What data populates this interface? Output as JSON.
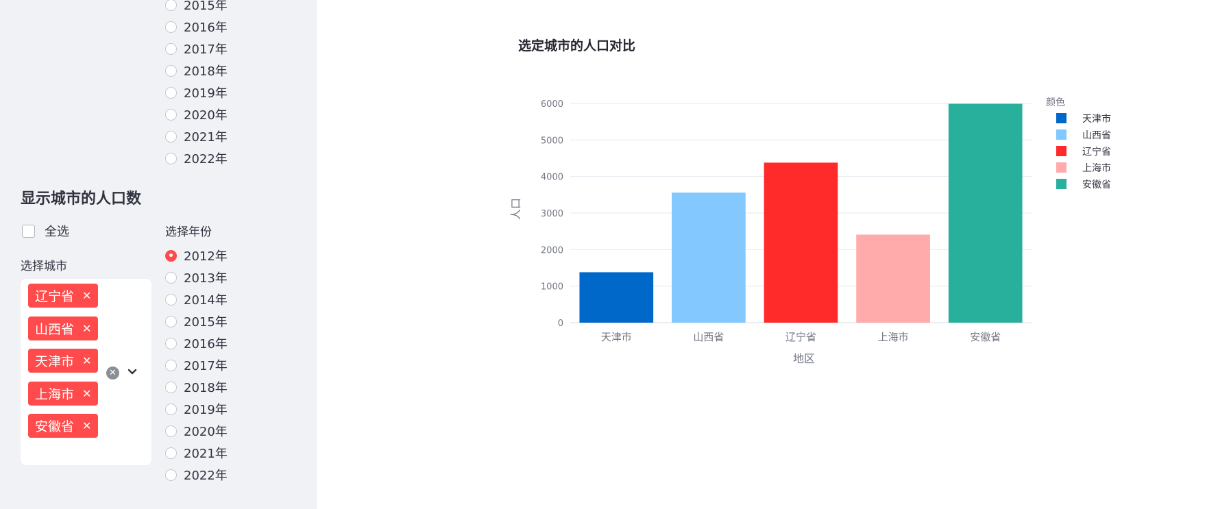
{
  "sidebar": {
    "top_years": [
      "2015年",
      "2016年",
      "2017年",
      "2018年",
      "2019年",
      "2020年",
      "2021年",
      "2022年"
    ],
    "section_title": "显示城市的人口数",
    "select_all_label": "全选",
    "select_city_label": "选择城市",
    "select_year_label": "选择年份",
    "years": [
      "2012年",
      "2013年",
      "2014年",
      "2015年",
      "2016年",
      "2017年",
      "2018年",
      "2019年",
      "2020年",
      "2021年",
      "2022年"
    ],
    "selected_year": "2012年",
    "selected_cities": [
      "辽宁省",
      "山西省",
      "天津市",
      "上海市",
      "安徽省"
    ],
    "tag_remove_glyph": "✕"
  },
  "main": {
    "chart_title": "选定城市的人口对比"
  },
  "chart_data": {
    "type": "bar",
    "categories": [
      "天津市",
      "山西省",
      "辽宁省",
      "上海市",
      "安徽省"
    ],
    "values": [
      1380,
      3560,
      4380,
      2410,
      5990
    ],
    "colors": [
      "#0068c9",
      "#83c9ff",
      "#ff2b2b",
      "#ffabab",
      "#29b09d"
    ],
    "xlabel": "地区",
    "ylabel": "人口",
    "ylim": [
      0,
      6000
    ],
    "yticks": [
      0,
      1000,
      2000,
      3000,
      4000,
      5000,
      6000
    ],
    "legend_title": "颜色",
    "legend": [
      "天津市",
      "山西省",
      "辽宁省",
      "上海市",
      "安徽省"
    ],
    "legend_placement": "top-right",
    "grid": true
  }
}
